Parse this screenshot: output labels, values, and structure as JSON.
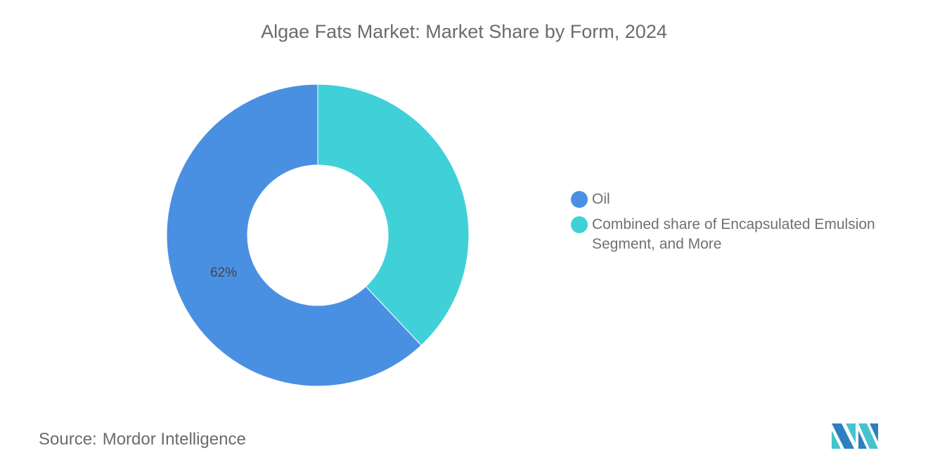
{
  "chart_data": {
    "type": "pie",
    "variant": "donut",
    "title": "Algae Fats Market: Market Share by Form, 2024",
    "categories": [
      "Oil",
      "Combined share of Encapsulated Emulsion Segment, and More"
    ],
    "values": [
      62,
      38
    ],
    "data_labels": [
      "62%",
      ""
    ],
    "colors": [
      "#4a90e2",
      "#40d0d8"
    ],
    "legend_placement": "right"
  },
  "source": {
    "label": "Source:",
    "value": "Mordor Intelligence"
  },
  "logo": {
    "text": "Mordor Intelligence",
    "colors": [
      "#2d7fc1",
      "#45c3cf"
    ]
  }
}
